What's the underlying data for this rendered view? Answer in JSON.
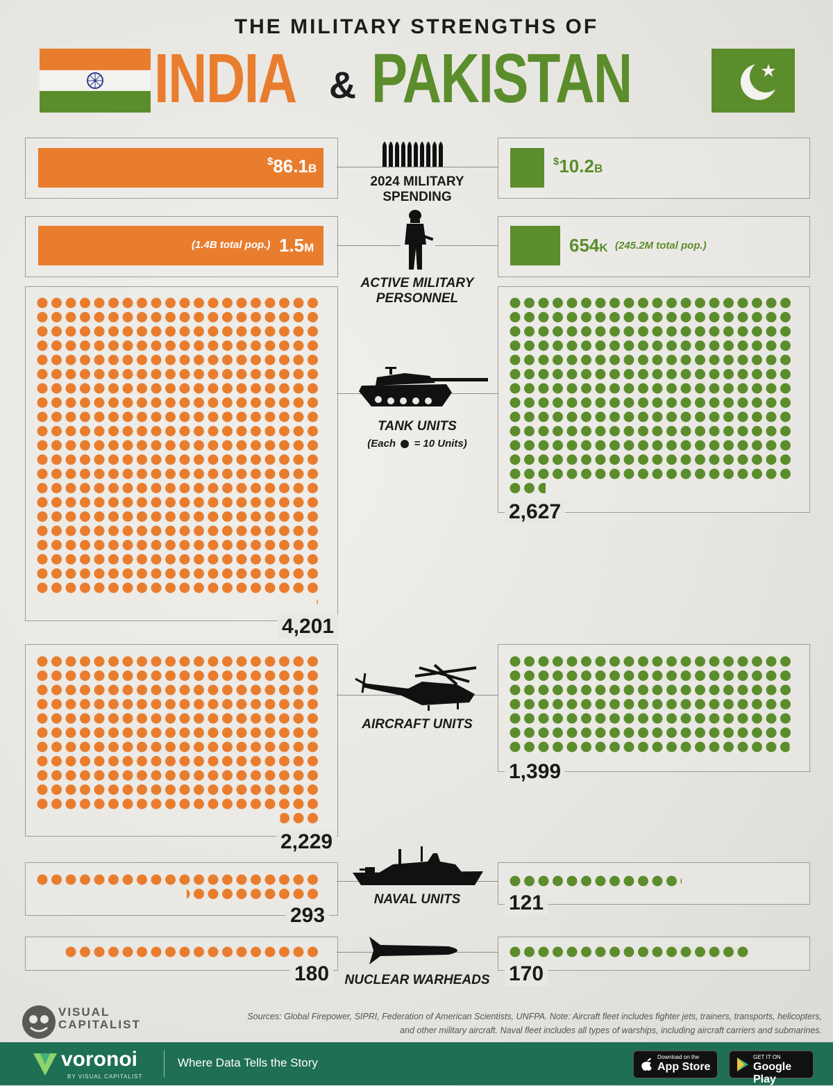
{
  "header": {
    "title_line": "THE MILITARY STRENGTHS OF",
    "india": "INDIA",
    "amp": "&",
    "pakistan": "PAKISTAN"
  },
  "labels": {
    "spending": "2024 MILITARY SPENDING",
    "personnel_1": "ACTIVE MILITARY",
    "personnel_2": "PERSONNEL",
    "tanks": "TANK UNITS",
    "tanks_note_a": "(Each",
    "tanks_note_b": "= 10 Units)",
    "aircraft": "AIRCRAFT UNITS",
    "naval": "NAVAL UNITS",
    "nuclear": "NUCLEAR WARHEADS"
  },
  "spending": {
    "india_cur": "$",
    "india_num": "86.1",
    "india_unit": "B",
    "pak_cur": "$",
    "pak_num": "10.2",
    "pak_unit": "B"
  },
  "personnel": {
    "india_pop": "(1.4B total pop.)",
    "india_num": "1.5",
    "india_unit": "M",
    "pak_num": "654",
    "pak_unit": "K",
    "pak_pop": "(245.2M total pop.)"
  },
  "counts": {
    "india_tanks": "4,201",
    "pak_tanks": "2,627",
    "india_aircraft": "2,229",
    "pak_aircraft": "1,399",
    "india_naval": "293",
    "pak_naval": "121",
    "india_nuclear": "180",
    "pak_nuclear": "170"
  },
  "footer": {
    "sources": "Sources: Global Firepower, SIPRI, Federation of American Scientists, UNFPA. Note: Aircraft fleet includes fighter jets, trainers, transports, helicopters, and other military aircraft. Naval fleet includes all types of warships, including aircraft carriers and submarines.",
    "vc_1": "VISUAL",
    "vc_2": "CAPITALIST",
    "brand": "voronoi",
    "brand_sub": "BY VISUAL CAPITALIST",
    "tagline": "Where Data Tells the Story",
    "appstore_small": "Download on the",
    "appstore_big": "App Store",
    "gplay_small": "GET IT ON",
    "gplay_big": "Google Play"
  },
  "colors": {
    "india": "#e87d2e",
    "pakistan": "#5b8d2c"
  },
  "chart_data": {
    "type": "bar",
    "categories": [
      "2024 MILITARY SPENDING",
      "ACTIVE MILITARY PERSONNEL",
      "TANK UNITS",
      "AIRCRAFT UNITS",
      "NAVAL UNITS",
      "NUCLEAR WARHEADS"
    ],
    "series": [
      {
        "name": "INDIA",
        "values": [
          86.1,
          1500000,
          4201,
          2229,
          293,
          180
        ]
      },
      {
        "name": "PAKISTAN",
        "values": [
          10.2,
          654000,
          2627,
          1399,
          121,
          170
        ]
      }
    ],
    "units": [
      "$B",
      "",
      "",
      "",
      "",
      ""
    ],
    "dot_unit_tanks": 10,
    "dot_unit_other": 10
  }
}
